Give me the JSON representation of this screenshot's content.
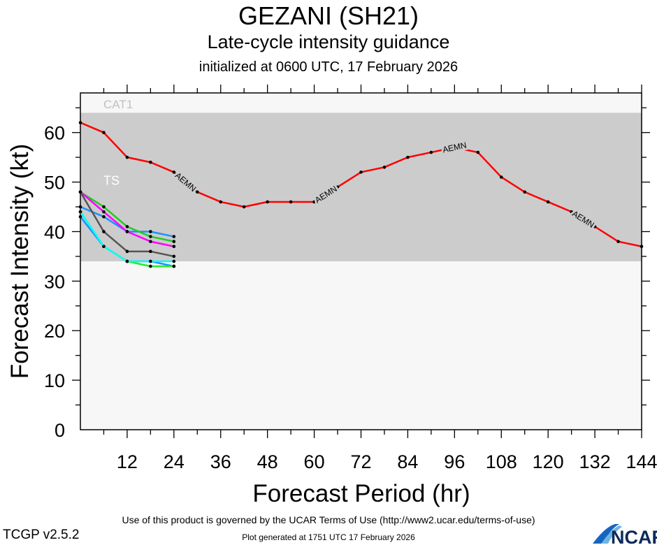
{
  "header": {
    "title": "GEZANI (SH21)",
    "subtitle": "Late-cycle intensity guidance",
    "initialized": "initialized at 0600 UTC, 17 February 2026"
  },
  "footer": {
    "terms": "Use of this product is governed by the UCAR Terms of Use (http://www2.ucar.edu/terms-of-use)",
    "version": "TCGP v2.5.2",
    "generated": "Plot generated at 1751 UTC   17 February 2026",
    "logo_text": "NCAR"
  },
  "chart_data": {
    "type": "line",
    "xlabel": "Forecast Period (hr)",
    "ylabel": "Forecast Intensity (kt)",
    "xlim": [
      0,
      144
    ],
    "ylim": [
      0,
      68
    ],
    "xticks": [
      12,
      24,
      36,
      48,
      60,
      72,
      84,
      96,
      108,
      120,
      132,
      144
    ],
    "yticks": [
      0,
      10,
      20,
      30,
      40,
      50,
      60
    ],
    "grid": false,
    "bands": [
      {
        "label": "TS",
        "from": 34,
        "to": 64,
        "color": "#cccccc",
        "label_color": "#ffffff"
      },
      {
        "label": "CAT1",
        "from": 64,
        "to": 68,
        "color": "#f7f7f7",
        "label_color": "#c0c0c0"
      }
    ],
    "below_band_color": "#f7f7f7",
    "series": [
      {
        "name": "AEMN",
        "color": "#ff0000",
        "label_at": [
          27,
          63,
          96,
          129
        ],
        "x": [
          0,
          6,
          12,
          18,
          24,
          30,
          36,
          42,
          48,
          54,
          60,
          66,
          72,
          78,
          84,
          90,
          96,
          102,
          108,
          114,
          120,
          126,
          132,
          138,
          144
        ],
        "y": [
          62,
          60,
          55,
          54,
          52,
          48,
          46,
          45,
          46,
          46,
          46,
          49,
          52,
          53,
          55,
          56,
          57,
          56,
          51,
          48,
          46,
          44,
          41,
          38,
          37
        ]
      },
      {
        "color": "#1e90ff",
        "x": [
          0,
          6,
          12,
          18,
          24
        ],
        "y": [
          45,
          43,
          40,
          40,
          39
        ]
      },
      {
        "color": "#22cc22",
        "x": [
          0,
          6,
          12,
          18,
          24
        ],
        "y": [
          48,
          45,
          41,
          39,
          38
        ]
      },
      {
        "color": "#ff00ff",
        "x": [
          0,
          6,
          12,
          18,
          24
        ],
        "y": [
          48,
          44,
          40,
          38,
          37
        ]
      },
      {
        "color": "#555555",
        "x": [
          0,
          6,
          12,
          18,
          24
        ],
        "y": [
          48,
          40,
          36,
          36,
          35
        ]
      },
      {
        "color": "#1e90ff",
        "x": [
          0,
          6,
          12,
          18,
          24
        ],
        "y": [
          43,
          37,
          34,
          34,
          33
        ]
      },
      {
        "color": "#22ee22",
        "x": [
          0,
          6,
          12,
          18,
          24
        ],
        "y": [
          44,
          37,
          34,
          33,
          33
        ]
      },
      {
        "color": "#00ffff",
        "x": [
          0,
          6,
          12,
          18,
          24
        ],
        "y": [
          44,
          37,
          34,
          34,
          34
        ]
      }
    ]
  }
}
